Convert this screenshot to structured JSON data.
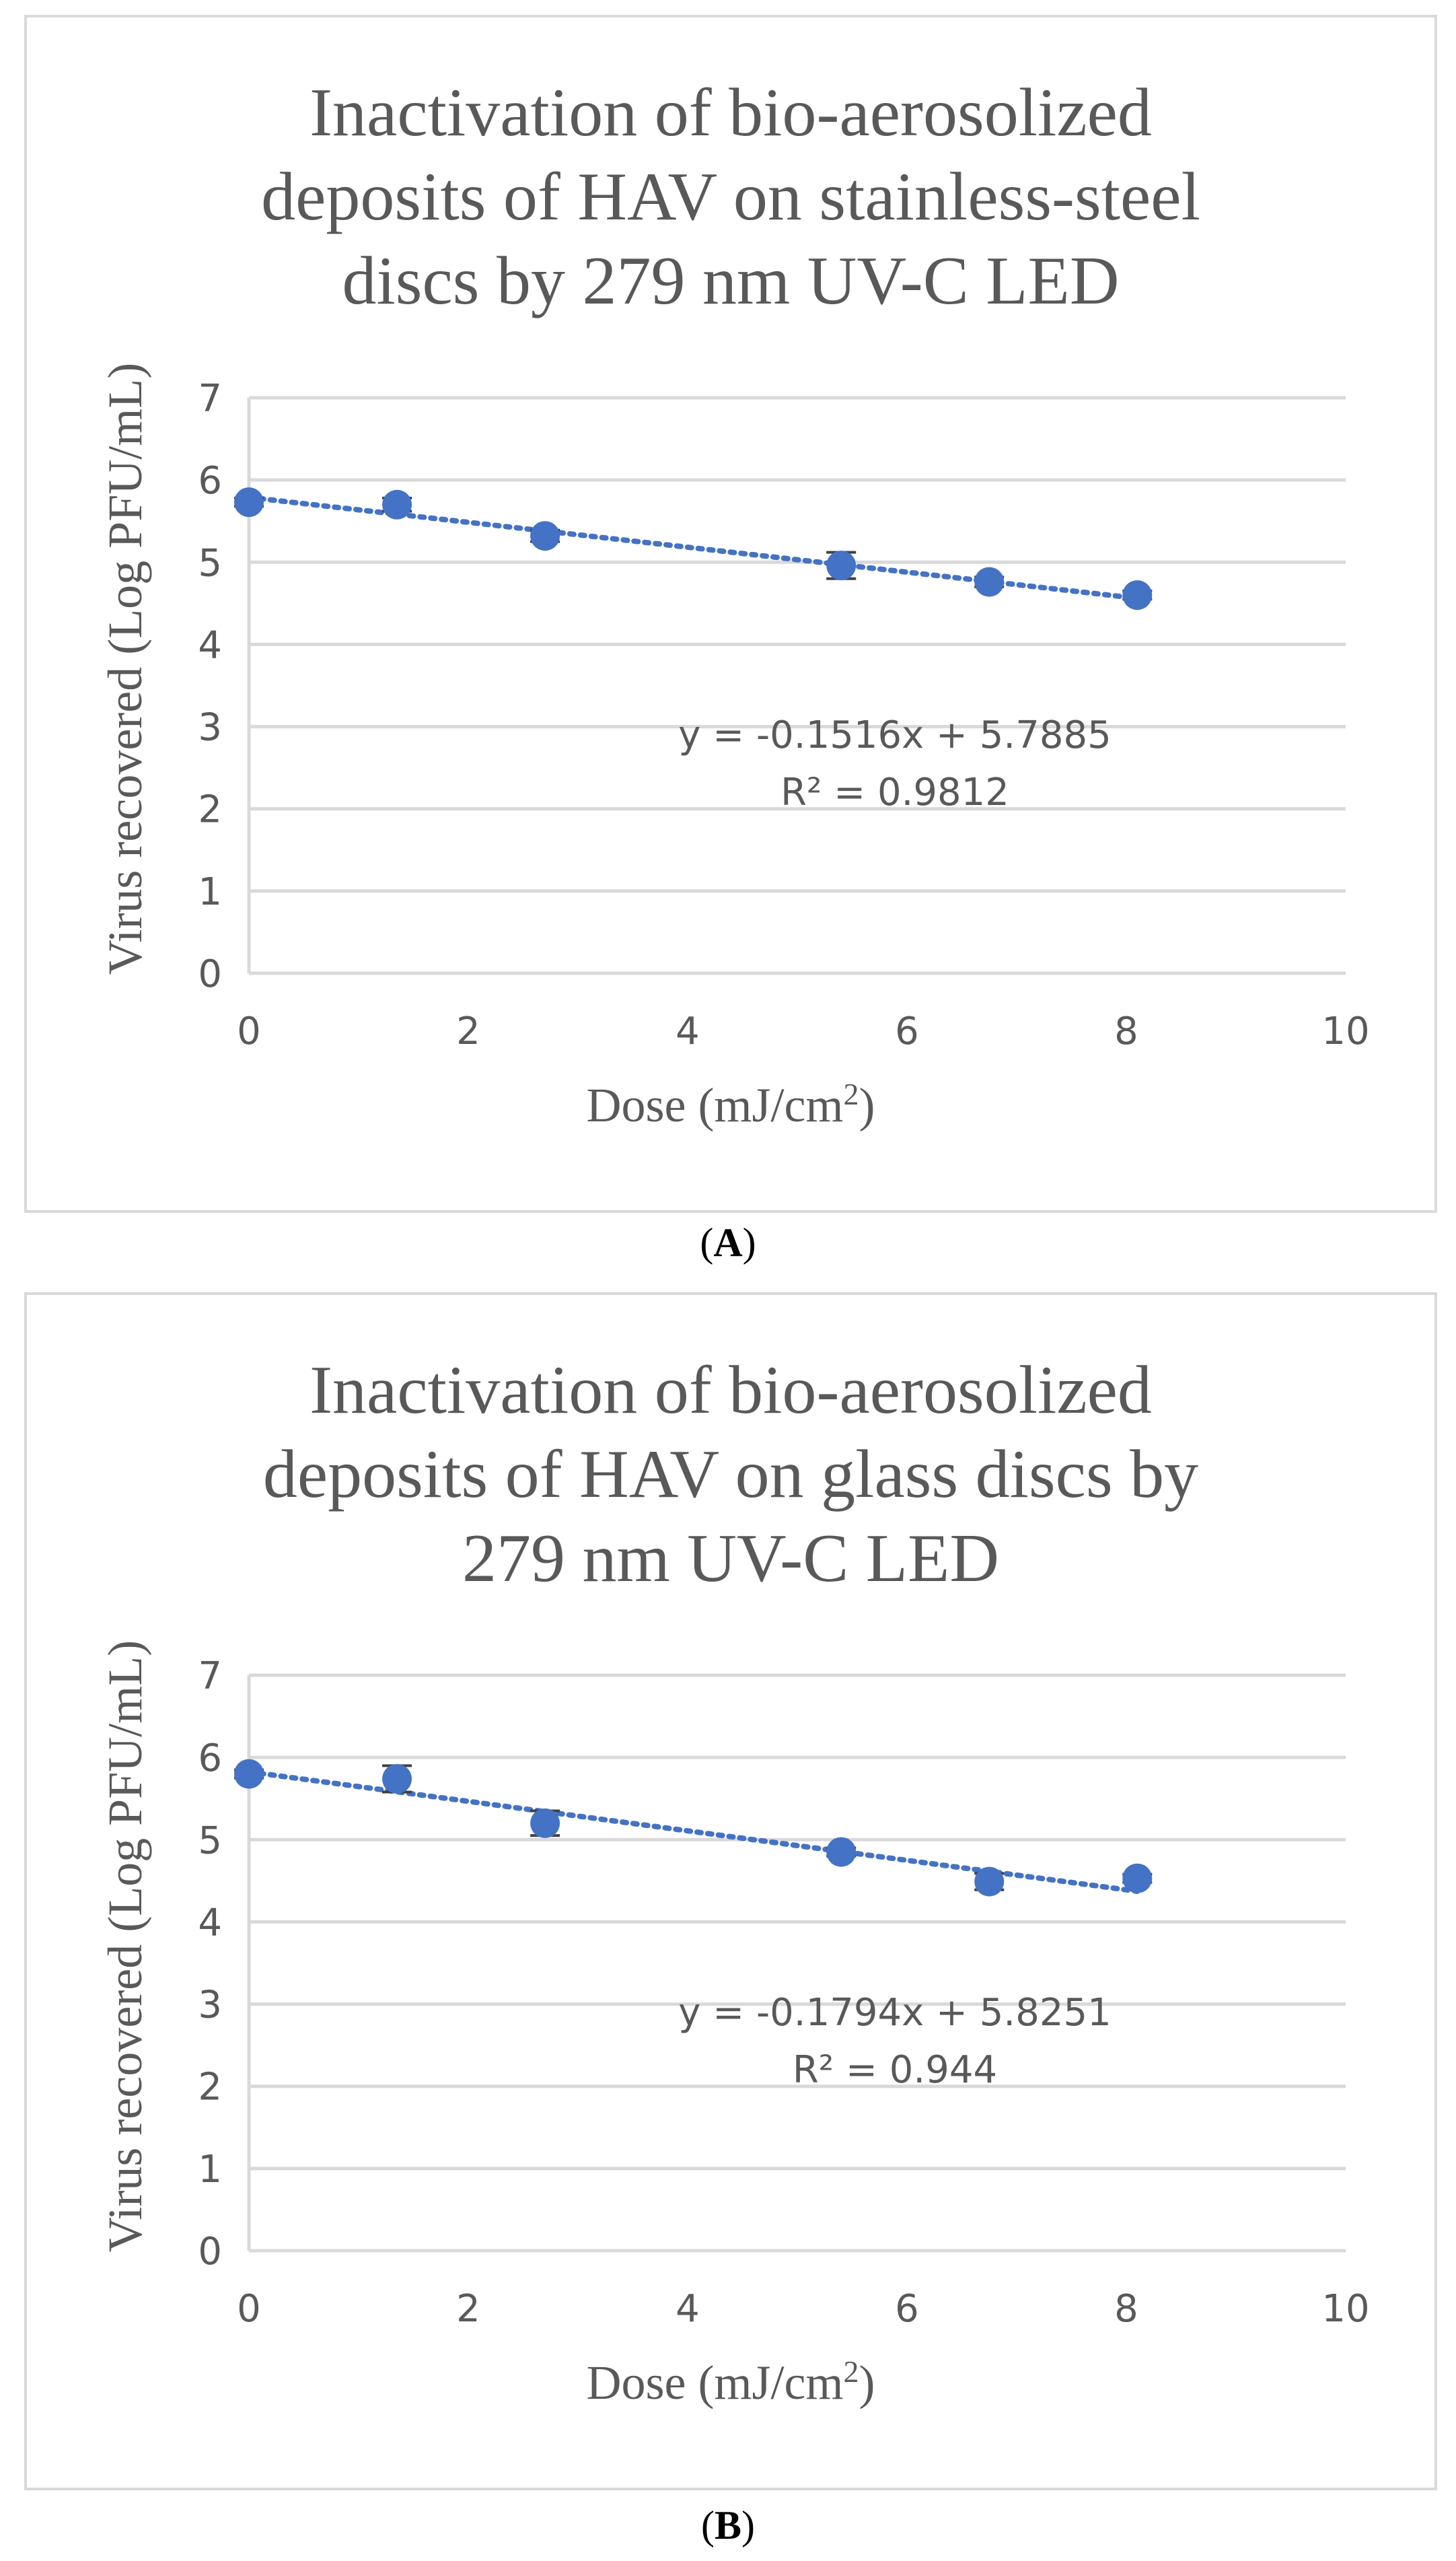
{
  "colors": {
    "marker": "#4472c4",
    "trendline": "#4472c4",
    "grid": "#d9d9d9",
    "text": "#595959",
    "errorbar": "#404040"
  },
  "chart_data": [
    {
      "id": "A",
      "type": "scatter",
      "panel_label": "A",
      "title_lines": [
        "Inactivation of bio-aerosolized",
        "deposits of HAV on stainless-steel",
        "discs by 279 nm UV-C LED"
      ],
      "xlabel_main": "Dose (mJ/cm",
      "xlabel_sup": "2",
      "xlabel_tail": ")",
      "ylabel": "Virus recovered (Log PFU/mL)",
      "xlim": [
        0,
        10
      ],
      "ylim": [
        0,
        7
      ],
      "x_ticks": [
        0,
        2,
        4,
        6,
        8,
        10
      ],
      "y_ticks": [
        0,
        1,
        2,
        3,
        4,
        5,
        6,
        7
      ],
      "x": [
        0,
        1.35,
        2.7,
        5.4,
        6.75,
        8.1
      ],
      "y": [
        5.73,
        5.7,
        5.32,
        4.96,
        4.76,
        4.6
      ],
      "error": [
        0.05,
        0.08,
        0.07,
        0.16,
        0.06,
        0.05
      ],
      "trendline": {
        "slope": -0.1516,
        "intercept": 5.7885,
        "x_range": [
          0,
          8.1
        ]
      },
      "equation": "y = -0.1516x + 5.7885",
      "r_squared": "R² = 0.9812"
    },
    {
      "id": "B",
      "type": "scatter",
      "panel_label": "B",
      "title_lines": [
        "Inactivation of bio-aerosolized",
        "deposits of HAV on glass discs by",
        "279 nm UV-C LED"
      ],
      "xlabel_main": "Dose (mJ/cm",
      "xlabel_sup": "2",
      "xlabel_tail": ")",
      "ylabel": "Virus recovered (Log PFU/mL)",
      "xlim": [
        0,
        10
      ],
      "ylim": [
        0,
        7
      ],
      "x_ticks": [
        0,
        2,
        4,
        6,
        8,
        10
      ],
      "y_ticks": [
        0,
        1,
        2,
        3,
        4,
        5,
        6,
        7
      ],
      "x": [
        0,
        1.35,
        2.7,
        5.4,
        6.75,
        8.1
      ],
      "y": [
        5.8,
        5.74,
        5.2,
        4.85,
        4.49,
        4.53
      ],
      "error": [
        0.05,
        0.16,
        0.15,
        0.05,
        0.1,
        0.05
      ],
      "trendline": {
        "slope": -0.1794,
        "intercept": 5.8251,
        "x_range": [
          0,
          8.1
        ]
      },
      "equation": "y = -0.1794x + 5.8251",
      "r_squared": "R² = 0.944"
    }
  ]
}
